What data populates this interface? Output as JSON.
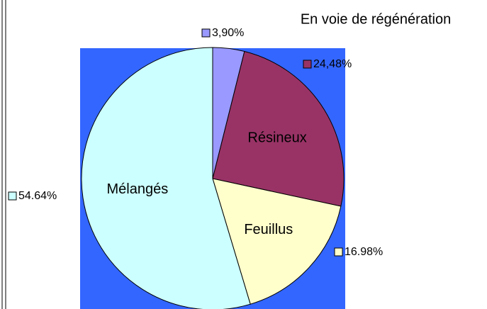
{
  "chart_data": {
    "type": "pie",
    "title": "En voie de régénération",
    "categories": [
      null,
      "Résineux",
      "Feuillus",
      "Mélangés"
    ],
    "values": [
      3.9,
      24.48,
      16.98,
      54.64
    ],
    "value_labels": [
      "3,90%",
      "24,48%",
      "16.98%",
      "54.64%"
    ],
    "colors": [
      "#9999ff",
      "#993366",
      "#ffffcc",
      "#ccffff"
    ],
    "background": "#3366ff"
  }
}
